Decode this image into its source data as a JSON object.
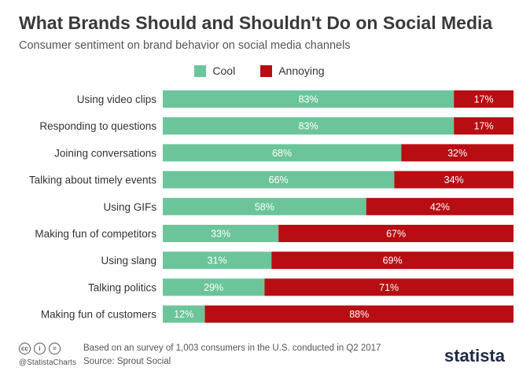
{
  "header": {
    "title": "What Brands Should and Shouldn't Do on Social Media",
    "subtitle": "Consumer sentiment on brand behavior on social media channels"
  },
  "colors": {
    "cool": "#6cc59a",
    "annoying": "#b80d12"
  },
  "chart_data": {
    "type": "bar",
    "orientation": "horizontal",
    "stacked": true,
    "categories": [
      "Using video clips",
      "Responding to questions",
      "Joining conversations",
      "Talking about timely events",
      "Using GIFs",
      "Making fun of competitors",
      "Using slang",
      "Talking politics",
      "Making fun of customers"
    ],
    "series": [
      {
        "name": "Cool",
        "values": [
          83,
          83,
          68,
          66,
          58,
          33,
          31,
          29,
          12
        ]
      },
      {
        "name": "Annoying",
        "values": [
          17,
          17,
          32,
          34,
          42,
          67,
          69,
          71,
          88
        ]
      }
    ],
    "value_suffix": "%",
    "xlim": [
      0,
      100
    ],
    "legend_position": "top-center",
    "grid": false
  },
  "footer": {
    "note": "Based on an survey of 1,003 consumers in the U.S. conducted in Q2 2017",
    "handle": "@StatistaCharts",
    "source": "Source: Sprout Social",
    "logo": "statista",
    "cc_icons": [
      "cc",
      "i",
      "="
    ]
  }
}
